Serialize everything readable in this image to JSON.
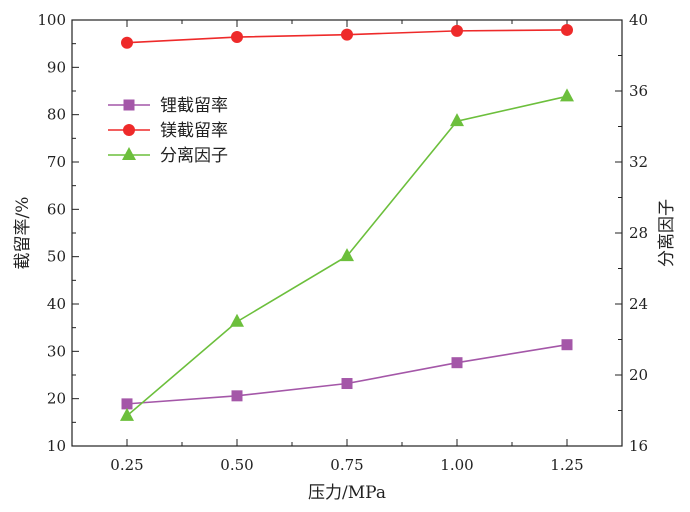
{
  "chart_data": {
    "type": "line",
    "xlabel": "压力/MPa",
    "ylabel_left": "截留率/%",
    "ylabel_right": "分离因子",
    "x": [
      0.25,
      0.5,
      0.75,
      1.0,
      1.25
    ],
    "x_tick_labels": [
      "0.25",
      "0.50",
      "0.75",
      "1.00",
      "1.25"
    ],
    "xlim": [
      0.125,
      1.375
    ],
    "ylim_left": [
      10,
      100
    ],
    "ylim_right": [
      16,
      40
    ],
    "y_left_ticks": [
      "10",
      "20",
      "30",
      "40",
      "50",
      "60",
      "70",
      "80",
      "90",
      "100"
    ],
    "y_right_ticks": [
      "16",
      "20",
      "24",
      "28",
      "32",
      "36",
      "40"
    ],
    "grid": false,
    "legend_position": "upper-left",
    "series": [
      {
        "name": "锂截留率",
        "axis": "left",
        "marker": "square",
        "color": "#a457a8",
        "values": [
          18.9,
          20.6,
          23.2,
          27.6,
          31.4
        ]
      },
      {
        "name": "镁截留率",
        "axis": "left",
        "marker": "circle",
        "color": "#ee2a2a",
        "values": [
          95.2,
          96.4,
          96.9,
          97.7,
          97.9
        ]
      },
      {
        "name": "分离因子",
        "axis": "right",
        "marker": "triangle",
        "color": "#6cbf3c",
        "values": [
          17.7,
          23.0,
          26.7,
          34.3,
          35.7
        ]
      }
    ]
  }
}
